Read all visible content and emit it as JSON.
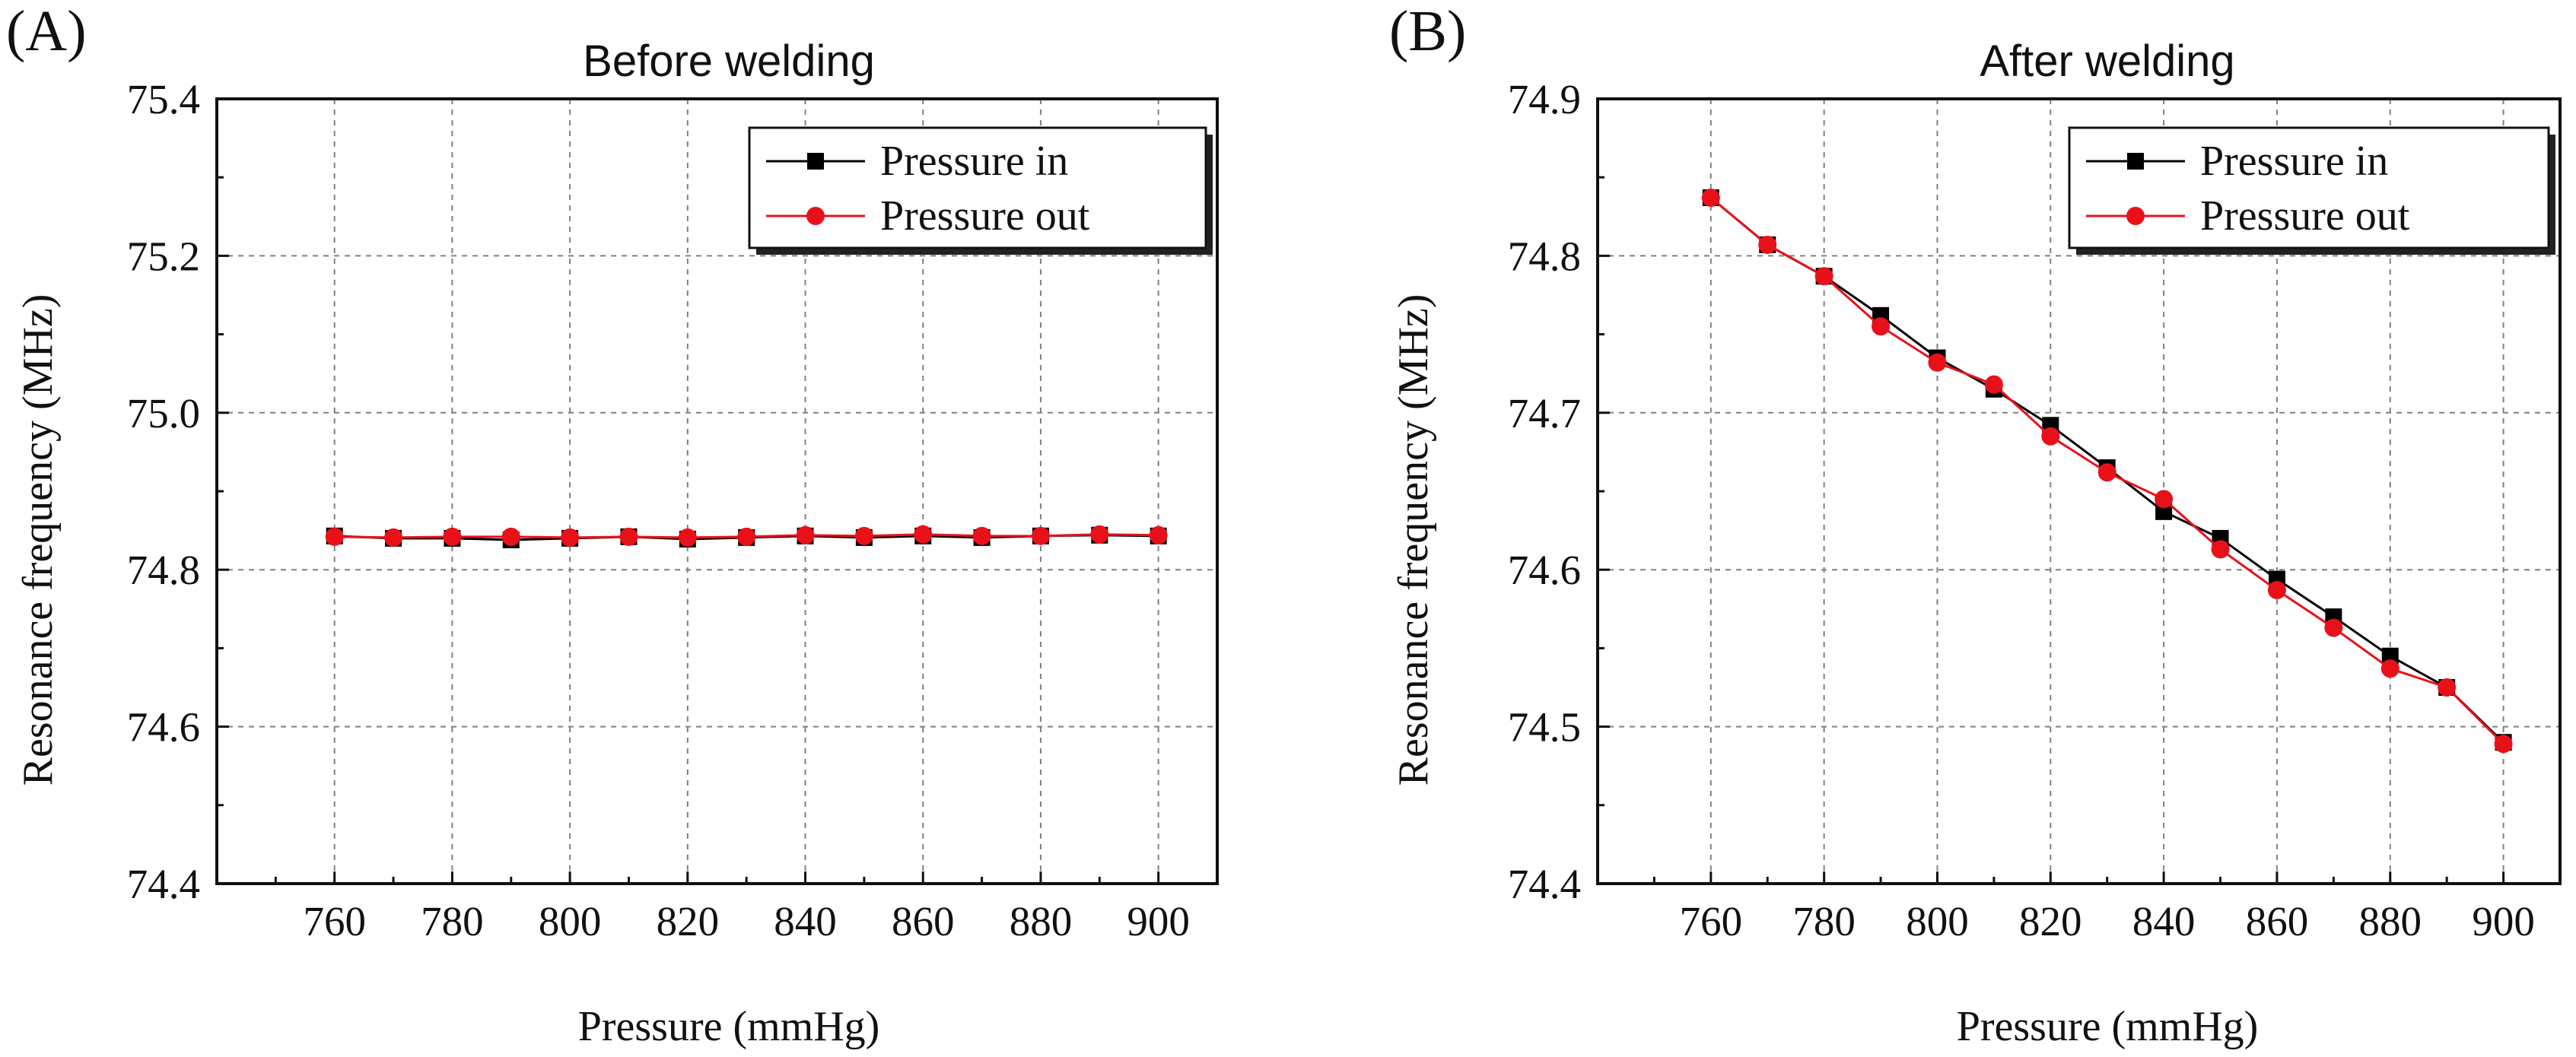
{
  "chart_data": [
    {
      "type": "line",
      "panel_label": "(A)",
      "title": "Before welding",
      "xlabel": "Pressure (mmHg)",
      "ylabel": "Resonance frequency (MHz)",
      "xlim": [
        740,
        910
      ],
      "ylim": [
        74.4,
        75.4
      ],
      "xticks": [
        760,
        780,
        800,
        820,
        840,
        860,
        880,
        900
      ],
      "xtick_labels": [
        "760",
        "780",
        "800",
        "820",
        "840",
        "860",
        "880",
        "900"
      ],
      "yticks": [
        74.4,
        74.6,
        74.8,
        75.0,
        75.2,
        75.4
      ],
      "ytick_labels": [
        "74.4",
        "74.6",
        "74.8",
        "75.0",
        "75.2",
        "75.4"
      ],
      "grid": true,
      "legend_position": "top-right",
      "x": [
        760,
        770,
        780,
        790,
        800,
        810,
        820,
        830,
        840,
        850,
        860,
        870,
        880,
        890,
        900
      ],
      "series": [
        {
          "name": "Pressure in",
          "color": "#000000",
          "marker": "square",
          "values": [
            74.843,
            74.84,
            74.84,
            74.838,
            74.84,
            74.842,
            74.839,
            74.841,
            74.843,
            74.841,
            74.843,
            74.841,
            74.843,
            74.844,
            74.843
          ]
        },
        {
          "name": "Pressure out",
          "color": "#e8111a",
          "marker": "circle",
          "values": [
            74.842,
            74.841,
            74.842,
            74.842,
            74.841,
            74.842,
            74.841,
            74.842,
            74.844,
            74.843,
            74.845,
            74.843,
            74.843,
            74.845,
            74.844
          ]
        }
      ]
    },
    {
      "type": "line",
      "panel_label": "(B)",
      "title": "After welding",
      "xlabel": "Pressure (mmHg)",
      "ylabel": "Resonance frequency (MHz)",
      "xlim": [
        740,
        910
      ],
      "ylim": [
        74.4,
        74.9
      ],
      "xticks": [
        760,
        780,
        800,
        820,
        840,
        860,
        880,
        900
      ],
      "xtick_labels": [
        "760",
        "780",
        "800",
        "820",
        "840",
        "860",
        "880",
        "900"
      ],
      "yticks": [
        74.4,
        74.5,
        74.6,
        74.7,
        74.8,
        74.9
      ],
      "ytick_labels": [
        "74.4",
        "74.5",
        "74.6",
        "74.7",
        "74.8",
        "74.9"
      ],
      "grid": true,
      "legend_position": "top-right",
      "x": [
        760,
        770,
        780,
        790,
        800,
        810,
        820,
        830,
        840,
        850,
        860,
        870,
        880,
        890,
        900
      ],
      "series": [
        {
          "name": "Pressure in",
          "color": "#000000",
          "marker": "square",
          "values": [
            74.837,
            74.807,
            74.787,
            74.762,
            74.735,
            74.715,
            74.692,
            74.665,
            74.637,
            74.62,
            74.594,
            74.57,
            74.545,
            74.525,
            74.49
          ]
        },
        {
          "name": "Pressure out",
          "color": "#e8111a",
          "marker": "circle",
          "values": [
            74.837,
            74.807,
            74.787,
            74.755,
            74.732,
            74.718,
            74.685,
            74.662,
            74.645,
            74.613,
            74.587,
            74.563,
            74.537,
            74.525,
            74.489
          ]
        }
      ]
    }
  ]
}
